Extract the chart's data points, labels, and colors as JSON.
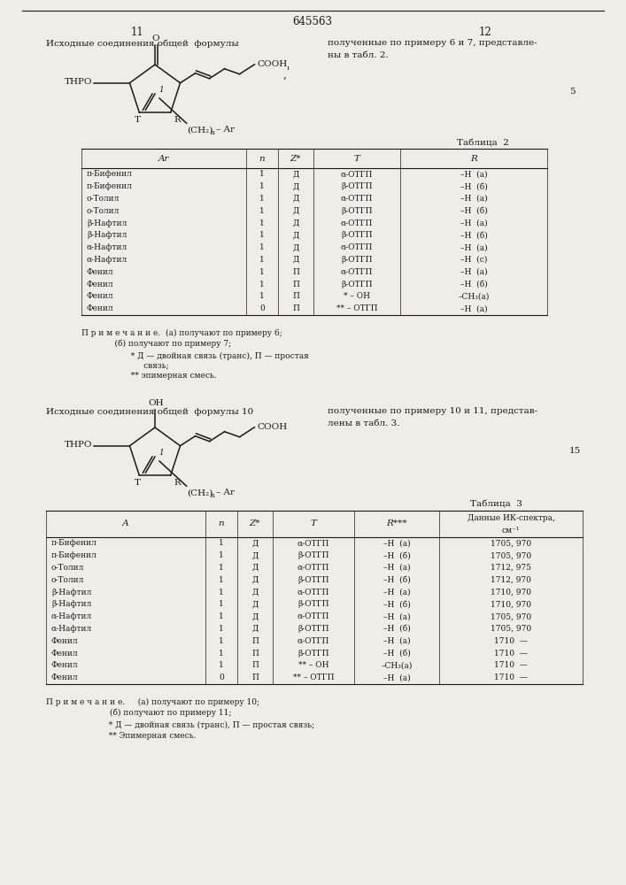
{
  "patent_number": "645563",
  "page_left": "11",
  "page_right": "12",
  "bg_color": "#f0ede8",
  "text_color": "#1a1a1a",
  "section1_text_left": "Исходные соединения общей  формулы",
  "section1_text_right1": "полученные по примеру 6 и 7, представле-",
  "section1_text_right2": "ны в табл. 2.",
  "section1_number": "5",
  "table2_title": "Таблица  2",
  "table2_headers": [
    "Ar",
    "n",
    "Z*",
    "T",
    "R"
  ],
  "table2_rows": [
    [
      "п-Бифенил",
      "1",
      "Д",
      "α-ОТГП",
      "–Н  (а)"
    ],
    [
      "п-Бифенил",
      "1",
      "Д",
      "β-ОТГП",
      "–Н  (б)"
    ],
    [
      "о-Толил",
      "1",
      "Д",
      "α-ОТГП",
      "–Н  (а)"
    ],
    [
      "о-Толил",
      "1",
      "Д",
      "β-ОТГП",
      "–Н  (б)"
    ],
    [
      "β-Нафтил",
      "1",
      "Д",
      "α-ОТГП",
      "–Н  (а)"
    ],
    [
      "β-Нафтил",
      "1",
      "Д",
      "β-ОТГП",
      "–Н  (б)"
    ],
    [
      "α-Нафтил",
      "1",
      "Д",
      "α-ОТГП",
      "–Н  (а)"
    ],
    [
      "α-Нафтил",
      "1",
      "Д",
      "β-ОТГП",
      "–Н  (с)"
    ],
    [
      "Фенил",
      "1",
      "П",
      "α-ОТГП",
      "–Н  (а)"
    ],
    [
      "Фенил",
      "1",
      "П",
      "β-ОТГП",
      "–Н  (б)"
    ],
    [
      "Фенил",
      "1",
      "П",
      "* – ОН",
      "–CH₃(а)"
    ],
    [
      "Фенил",
      "0",
      "П",
      "** – ОТГП",
      "–Н  (а)"
    ]
  ],
  "table2_note1": "П р и м е ч а н и е.  (а) получают по примеру 6;",
  "table2_note2": "             (б) получают по примеру 7;",
  "table2_footnote1": "  * Д — двойная связь (транс), П — простая",
  "table2_footnote2": "       связь;",
  "table2_footnote3": "  ** эпимерная смесь.",
  "section2_text_left": "Исходные соединения общей  формулы 10",
  "section2_text_right1": "полученные по примеру 10 и 11, представ-",
  "section2_text_right2": "лены в табл. 3.",
  "section2_number": "15",
  "table3_title": "Таблица  3",
  "table3_headers": [
    "А",
    "n",
    "Z*",
    "T",
    "R***",
    "Данные ИК-спектра,\nсм⁻¹"
  ],
  "table3_rows": [
    [
      "п-Бифенил",
      "1",
      "Д",
      "α-ОТГП",
      "–Н  (а)",
      "1705, 970"
    ],
    [
      "п-Бифенил",
      "1",
      "Д",
      "β-ОТГП",
      "–Н  (б)",
      "1705, 970"
    ],
    [
      "о-Толил",
      "1",
      "Д",
      "α-ОТГП",
      "–Н  (а)",
      "1712, 975"
    ],
    [
      "о-Толил",
      "1",
      "Д",
      "β-ОТГП",
      "–Н  (б)",
      "1712, 970"
    ],
    [
      "β-Нафтил",
      "1",
      "Д",
      "α-ОТГП",
      "–Н  (а)",
      "1710, 970"
    ],
    [
      "β-Нафтил",
      "1",
      "Д",
      "β-ОТГП",
      "–Н  (б)",
      "1710, 970"
    ],
    [
      "α-Нафтил",
      "1",
      "Д",
      "α-ОТГП",
      "–Н  (а)",
      "1705, 970"
    ],
    [
      "α-Нафтил",
      "1",
      "Д",
      "β-ОТГП",
      "–Н  (б)",
      "1705, 970"
    ],
    [
      "Фенил",
      "1",
      "П",
      "α-ОТГП",
      "–Н  (а)",
      "1710  —"
    ],
    [
      "Фенил",
      "1",
      "П",
      "β-ОТГП",
      "–Н  (б)",
      "1710  —"
    ],
    [
      "Фенил",
      "1",
      "П",
      "** – ОН",
      "–CH₃(а)",
      "1710  —"
    ],
    [
      "Фенил",
      "0",
      "П",
      "** – ОТГП",
      "–Н  (а)",
      "1710  —"
    ]
  ],
  "table3_note1": "П р и м е ч а н и е.     (а) получают по примеру 10;",
  "table3_note2": "                         (б) получают по примеру 11;",
  "table3_footnote1": "  * Д — двойная связь (транс), П — простая связь;",
  "table3_footnote2": "  ** Эпимерная смесь."
}
